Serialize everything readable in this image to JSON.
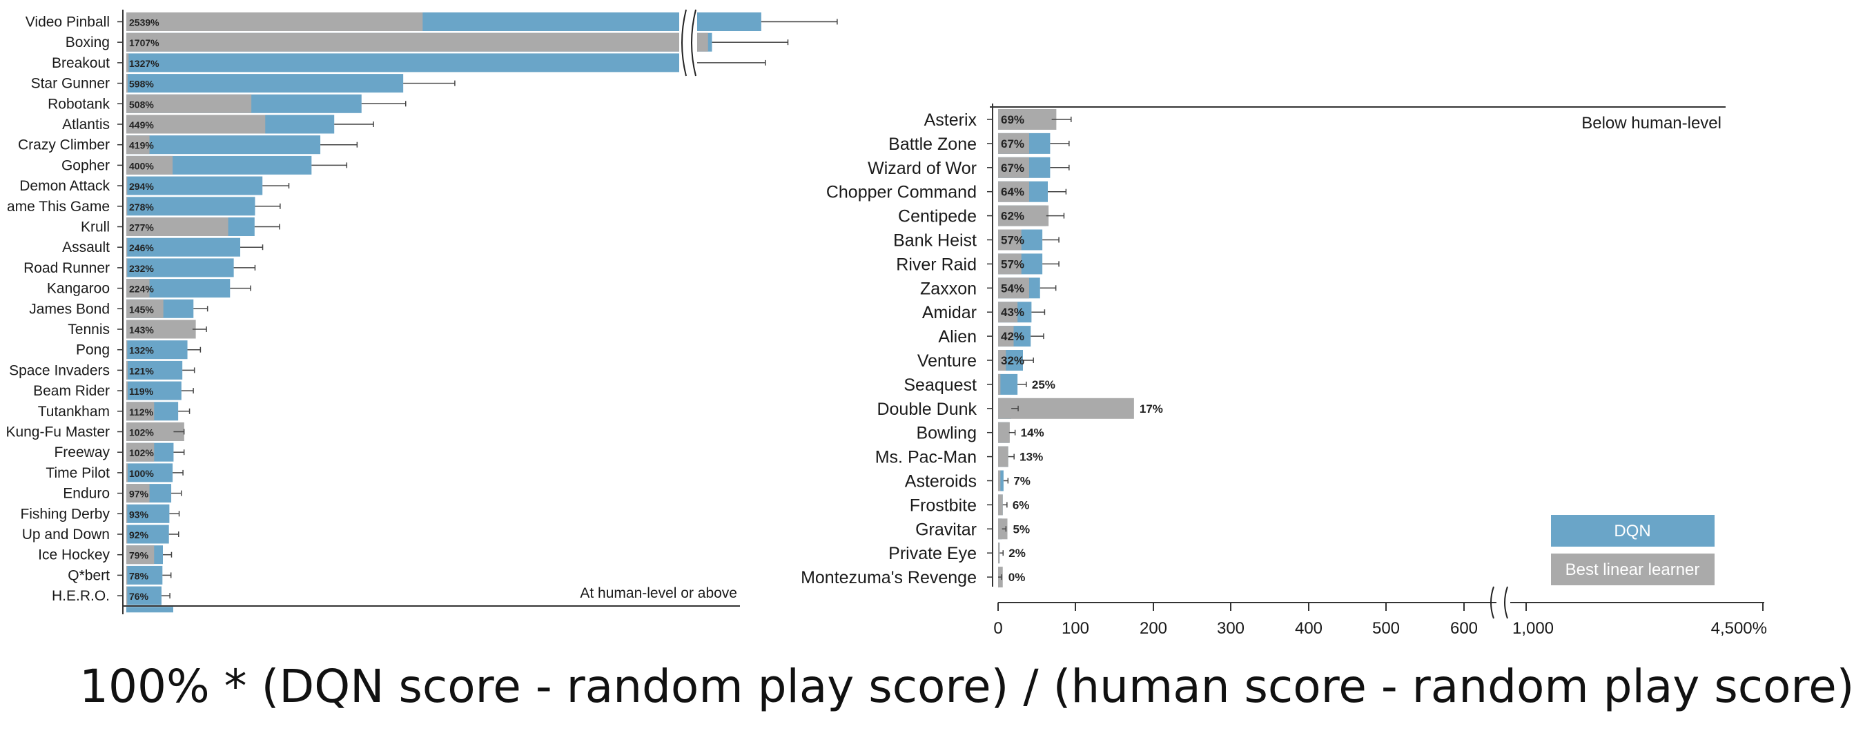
{
  "colors": {
    "dqn": "#6aa5c8",
    "linear": "#aaaaaa",
    "axis": "#333333",
    "text": "#1a1a1a"
  },
  "chart_data": [
    {
      "type": "bar",
      "panel": "left",
      "annotation": "At human-level or above",
      "series": [
        {
          "name": "DQN",
          "values": [
            2539,
            1707,
            1327,
            598,
            508,
            449,
            419,
            400,
            294,
            278,
            277,
            246,
            232,
            224,
            145,
            143,
            132,
            121,
            119,
            112,
            102,
            102,
            100,
            97,
            93,
            92,
            79,
            78,
            76
          ]
        },
        {
          "name": "Best linear learner",
          "values": [
            640,
            1640,
            5,
            3,
            270,
            300,
            50,
            100,
            2,
            2,
            220,
            2,
            2,
            50,
            80,
            150,
            2,
            3,
            3,
            60,
            125,
            60,
            3,
            50,
            2,
            2,
            60,
            2,
            2
          ]
        }
      ],
      "rows": [
        {
          "game": "Video Pinball",
          "label": "2539%"
        },
        {
          "game": "Boxing",
          "label": "1707%"
        },
        {
          "game": "Breakout",
          "label": "1327%"
        },
        {
          "game": "Star Gunner",
          "label": "598%"
        },
        {
          "game": "Robotank",
          "label": "508%"
        },
        {
          "game": "Atlantis",
          "label": "449%"
        },
        {
          "game": "Crazy Climber",
          "label": "419%"
        },
        {
          "game": "Gopher",
          "label": "400%"
        },
        {
          "game": "Demon Attack",
          "label": "294%"
        },
        {
          "game": "ame This Game",
          "label": "278%"
        },
        {
          "game": "Krull",
          "label": "277%"
        },
        {
          "game": "Assault",
          "label": "246%"
        },
        {
          "game": "Road Runner",
          "label": "232%"
        },
        {
          "game": "Kangaroo",
          "label": "224%"
        },
        {
          "game": "James Bond",
          "label": "145%"
        },
        {
          "game": "Tennis",
          "label": "143%"
        },
        {
          "game": "Pong",
          "label": "132%"
        },
        {
          "game": "Space Invaders",
          "label": "121%"
        },
        {
          "game": "Beam Rider",
          "label": "119%"
        },
        {
          "game": "Tutankham",
          "label": "112%"
        },
        {
          "game": "Kung-Fu Master",
          "label": "102%"
        },
        {
          "game": "Freeway",
          "label": "102%"
        },
        {
          "game": "Time Pilot",
          "label": "100%"
        },
        {
          "game": "Enduro",
          "label": "97%"
        },
        {
          "game": "Fishing Derby",
          "label": "93%"
        },
        {
          "game": "Up and Down",
          "label": "92%"
        },
        {
          "game": "Ice Hockey",
          "label": "79%"
        },
        {
          "game": "Q*bert",
          "label": "78%"
        },
        {
          "game": "H.E.R.O.",
          "label": "76%"
        }
      ]
    },
    {
      "type": "bar",
      "panel": "right",
      "annotation": "Below human-level",
      "x_tick_labels": [
        "0",
        "100",
        "200",
        "300",
        "400",
        "500",
        "600",
        "1,000",
        "4,500%"
      ],
      "x_ticks": [
        0,
        100,
        200,
        300,
        400,
        500,
        600,
        1000,
        4500
      ],
      "xlim": [
        0,
        4500
      ],
      "series": [
        {
          "name": "DQN",
          "values": [
            69,
            67,
            67,
            64,
            62,
            57,
            57,
            54,
            43,
            42,
            32,
            25,
            17,
            14,
            13,
            7,
            6,
            5,
            2,
            0
          ]
        },
        {
          "name": "Best linear learner",
          "values": [
            75,
            40,
            40,
            40,
            65,
            30,
            30,
            40,
            25,
            20,
            10,
            3,
            175,
            15,
            13,
            3,
            6,
            12,
            2,
            6
          ]
        }
      ],
      "rows": [
        {
          "game": "Asterix",
          "label": "69%"
        },
        {
          "game": "Battle Zone",
          "label": "67%"
        },
        {
          "game": "Wizard of Wor",
          "label": "67%"
        },
        {
          "game": "Chopper Command",
          "label": "64%"
        },
        {
          "game": "Centipede",
          "label": "62%"
        },
        {
          "game": "Bank Heist",
          "label": "57%"
        },
        {
          "game": "River Raid",
          "label": "57%"
        },
        {
          "game": "Zaxxon",
          "label": "54%"
        },
        {
          "game": "Amidar",
          "label": "43%"
        },
        {
          "game": "Alien",
          "label": "42%"
        },
        {
          "game": "Venture",
          "label": "32%"
        },
        {
          "game": "Seaquest",
          "label": "25%"
        },
        {
          "game": "Double Dunk",
          "label": "17%"
        },
        {
          "game": "Bowling",
          "label": "14%"
        },
        {
          "game": "Ms. Pac-Man",
          "label": "13%"
        },
        {
          "game": "Asteroids",
          "label": "7%"
        },
        {
          "game": "Frostbite",
          "label": "6%"
        },
        {
          "game": "Gravitar",
          "label": "5%"
        },
        {
          "game": "Private Eye",
          "label": "2%"
        },
        {
          "game": "Montezuma's Revenge",
          "label": "0%"
        }
      ],
      "legend": {
        "placement": "bottom-right",
        "items": [
          "DQN",
          "Best linear learner"
        ]
      }
    }
  ],
  "formula": "100% * (DQN score - random play score) / (human score - random play score)"
}
